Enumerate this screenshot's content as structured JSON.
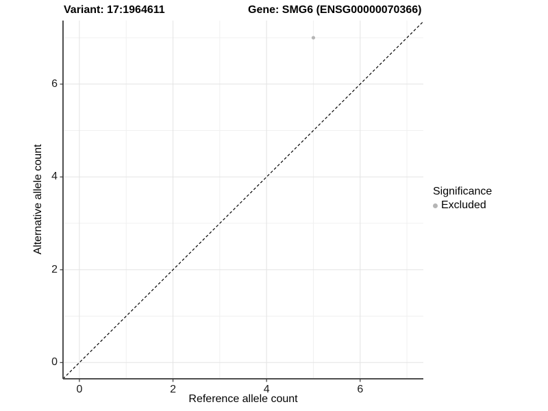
{
  "title": {
    "variant": "Variant: 17:1964611",
    "gene": "Gene: SMG6 (ENSG00000070366)"
  },
  "chart_data": {
    "type": "scatter",
    "title": "Variant: 17:1964611    Gene: SMG6 (ENSG00000070366)",
    "xlabel": "Reference allele count",
    "ylabel": "Alternative allele count",
    "xlim": [
      -0.35,
      7.35
    ],
    "ylim": [
      -0.35,
      7.37
    ],
    "x_ticks": {
      "values": [
        0,
        2,
        4,
        6
      ],
      "labels": [
        "0",
        "2",
        "4",
        "6"
      ]
    },
    "y_ticks": {
      "values": [
        0,
        2,
        4,
        6
      ],
      "labels": [
        "0",
        "2",
        "4",
        "6"
      ]
    },
    "x_minor_ticks": [
      1,
      3,
      5,
      7
    ],
    "y_minor_ticks": [
      1,
      3,
      5,
      7
    ],
    "series": [
      {
        "name": "Excluded",
        "points": [
          {
            "x": 5,
            "y": 7
          }
        ],
        "color": "#b5b5b5"
      }
    ],
    "reference_line": {
      "slope": 1,
      "intercept": 0,
      "style": "dashed",
      "color": "#000000"
    },
    "legend": {
      "title": "Significance",
      "position": "right",
      "entries": [
        {
          "label": "Excluded",
          "color": "#b5b5b5",
          "marker": "circle"
        }
      ]
    },
    "grid": "on",
    "colors": {
      "grid_major": "#e3e3e3",
      "grid_minor": "#f0f0f0",
      "axis_line": "#4d4d4d",
      "tick_mark": "#333333"
    }
  }
}
